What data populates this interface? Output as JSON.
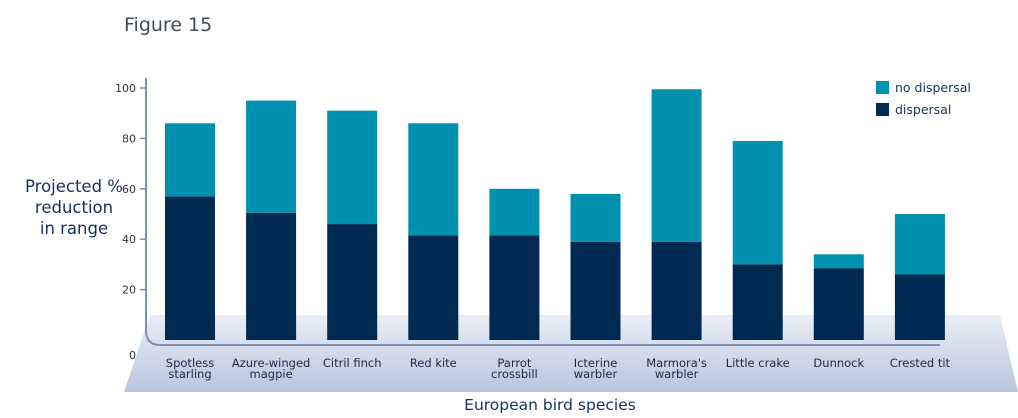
{
  "figure_label": "Figure 15",
  "chart_data": {
    "type": "bar",
    "stacked": true,
    "categories": [
      [
        "Spotless",
        "starling"
      ],
      [
        "Azure-winged",
        "magpie"
      ],
      [
        "Citril finch"
      ],
      [
        "Red kite"
      ],
      [
        "Parrot",
        "crossbill"
      ],
      [
        "Icterine",
        "warbler"
      ],
      [
        "Marmora's",
        "warbler"
      ],
      [
        "Little crake"
      ],
      [
        "Dunnock"
      ],
      [
        "Crested tit"
      ]
    ],
    "series": [
      {
        "name": "dispersal",
        "color": "#002a52",
        "values": [
          57,
          50.5,
          46,
          41.5,
          41.5,
          39,
          39,
          30,
          28.5,
          26
        ]
      },
      {
        "name": "no dispersal",
        "color": "#0090b0",
        "values": [
          29,
          44.5,
          45,
          44.5,
          18.5,
          19,
          60.5,
          49,
          5.5,
          24
        ]
      }
    ],
    "ylabel": [
      "Projected %",
      "reduction",
      "in range"
    ],
    "xlabel": "European bird species",
    "yticks": [
      0,
      20,
      40,
      60,
      80,
      100
    ],
    "ylim": [
      0,
      100
    ],
    "legend_position": "top-right",
    "grid": false
  }
}
